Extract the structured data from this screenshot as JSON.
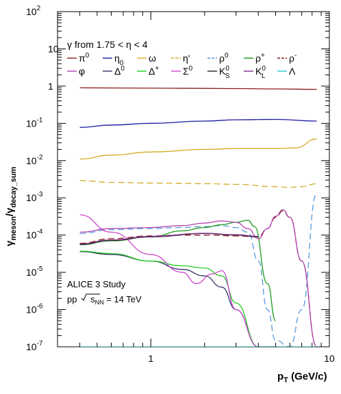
{
  "chart_data": {
    "type": "line",
    "xlabel": "p_T (GeV/c)",
    "ylabel": "γ_meson/γ_decay_sum",
    "xscale": "log",
    "yscale": "log",
    "xlim": [
      0.3,
      10
    ],
    "ylim": [
      1e-07,
      100
    ],
    "x_tick_labels": [
      "1",
      "10"
    ],
    "y_tick_labels": [
      "10^-7",
      "10^-6",
      "10^-5",
      "10^-4",
      "10^-3",
      "10^-2",
      "10^-1",
      "1",
      "10",
      "10^2"
    ],
    "legend_header": "γ from 1.75 < η < 4",
    "legend_placement": "top-center",
    "annotation": {
      "line1": "ALICE 3 Study",
      "line2_prefix": "pp ",
      "line2_suffix": " = 14 TeV",
      "sqrt_term": "s_NN"
    },
    "series": [
      {
        "name": "π^0",
        "color": "#8b1a1a",
        "dash": "solid",
        "x": [
          0.4,
          1,
          2,
          3,
          5,
          8.5
        ],
        "y": [
          0.9,
          0.88,
          0.87,
          0.86,
          0.84,
          0.82
        ]
      },
      {
        "name": "η_0",
        "color": "#1a1aa0",
        "dash": "solid",
        "x": [
          0.4,
          0.6,
          1,
          2,
          3,
          5,
          8.5
        ],
        "y": [
          0.078,
          0.09,
          0.1,
          0.115,
          0.125,
          0.128,
          0.115
        ]
      },
      {
        "name": "ω",
        "color": "#d4aa22",
        "dash": "solid",
        "x": [
          0.4,
          0.6,
          1,
          2,
          3,
          5,
          6.5,
          8.5
        ],
        "y": [
          0.011,
          0.014,
          0.017,
          0.02,
          0.021,
          0.021,
          0.022,
          0.038
        ]
      },
      {
        "name": "η'",
        "color": "#d4aa22",
        "dash": "dash",
        "x": [
          0.4,
          0.6,
          1,
          2,
          3,
          5,
          6,
          7,
          8.5
        ],
        "y": [
          0.0029,
          0.0026,
          0.0025,
          0.0024,
          0.0023,
          0.002,
          0.0019,
          0.002,
          0.0024
        ]
      },
      {
        "name": "ρ^0",
        "color": "#5599dd",
        "dash": "dash",
        "x": [
          0.4,
          0.6,
          1,
          1.5,
          2,
          2.5,
          3,
          3.5,
          4,
          4.5,
          5,
          6,
          7,
          8.5
        ],
        "y": [
          0.00011,
          0.00014,
          0.00015,
          0.00016,
          0.00017,
          0.00018,
          0.00016,
          0.00012,
          2e-05,
          1e-06,
          1.5e-07,
          1e-07,
          1e-06,
          0.0013
        ]
      },
      {
        "name": "ρ^+",
        "color": "#1a9a1a",
        "dash": "solid",
        "x": [
          0.4,
          0.6,
          1,
          1.5,
          2,
          2.5,
          3,
          3.5,
          3.8,
          4.5,
          5
        ],
        "y": [
          5.5e-05,
          7e-05,
          9e-05,
          0.00013,
          0.00016,
          0.00019,
          0.00022,
          0.00025,
          0.00017,
          5e-06,
          5e-07
        ]
      },
      {
        "name": "ρ^-",
        "color": "#8b1a1a",
        "dash": "dash",
        "x": [
          0.4,
          0.6,
          1,
          1.5,
          2,
          3,
          4,
          4.5,
          5,
          5.5,
          6,
          7,
          8.5
        ],
        "y": [
          6e-05,
          8e-05,
          9.5e-05,
          0.0001,
          0.0001,
          9.5e-05,
          9e-05,
          0.00015,
          0.0003,
          0.00045,
          0.0003,
          2e-05,
          1e-07
        ]
      },
      {
        "name": "φ",
        "color": "#b040b0",
        "dash": "solid",
        "x": [
          0.4,
          0.6,
          1,
          1.5,
          2,
          2.5,
          3,
          3.5,
          4,
          4.5,
          5,
          5.5,
          6,
          7,
          8.5
        ],
        "y": [
          0.00012,
          0.00015,
          0.00016,
          0.00018,
          0.00021,
          0.00024,
          0.00022,
          0.00015,
          8e-05,
          0.00015,
          0.00032,
          0.00048,
          0.0003,
          2e-05,
          1e-07
        ]
      },
      {
        "name": "Δ^0",
        "color": "#333366",
        "dash": "solid",
        "x": [
          0.4,
          0.6,
          1,
          1.5,
          2,
          2.5,
          3,
          4,
          5
        ],
        "y": [
          3.6e-05,
          3e-05,
          2e-05,
          1.2e-05,
          8e-06,
          4e-06,
          1e-06,
          1e-07,
          1e-08
        ]
      },
      {
        "name": "Δ^+",
        "color": "#22cc22",
        "dash": "solid",
        "x": [
          0.4,
          0.6,
          1,
          1.5,
          2,
          2.5,
          3,
          4,
          5
        ],
        "y": [
          3.7e-05,
          3.2e-05,
          2e-05,
          1.5e-05,
          1.3e-05,
          8e-06,
          1.5e-06,
          1e-07,
          1e-08
        ]
      },
      {
        "name": "Σ^0",
        "color": "#cc44cc",
        "dash": "solid",
        "x": [
          0.4,
          0.6,
          1,
          1.5,
          1.8,
          2.2,
          2.5,
          3,
          4,
          5
        ],
        "y": [
          0.00035,
          0.00012,
          3e-05,
          1e-05,
          5e-06,
          9e-06,
          1.1e-05,
          1e-06,
          1e-07,
          1e-08
        ]
      },
      {
        "name": "K^0_S",
        "color": "#222222",
        "dash": "solid",
        "x": [
          0.4,
          0.6,
          1,
          2,
          3,
          4
        ],
        "y": [
          5.6e-05,
          7.2e-05,
          9e-05,
          0.00011,
          0.0001,
          9e-05
        ]
      },
      {
        "name": "K^0_L",
        "color": "#7a2a8a",
        "dash": "solid",
        "x": [
          0.4,
          0.6,
          1,
          2,
          3,
          4
        ],
        "y": [
          5.8e-05,
          7.4e-05,
          9.2e-05,
          0.000112,
          0.000102,
          9.2e-05
        ]
      },
      {
        "name": "Λ",
        "color": "#22cccc",
        "dash": "solid",
        "x": [
          0.4,
          8.5
        ],
        "y": [
          1e-07,
          1e-07
        ]
      }
    ]
  }
}
